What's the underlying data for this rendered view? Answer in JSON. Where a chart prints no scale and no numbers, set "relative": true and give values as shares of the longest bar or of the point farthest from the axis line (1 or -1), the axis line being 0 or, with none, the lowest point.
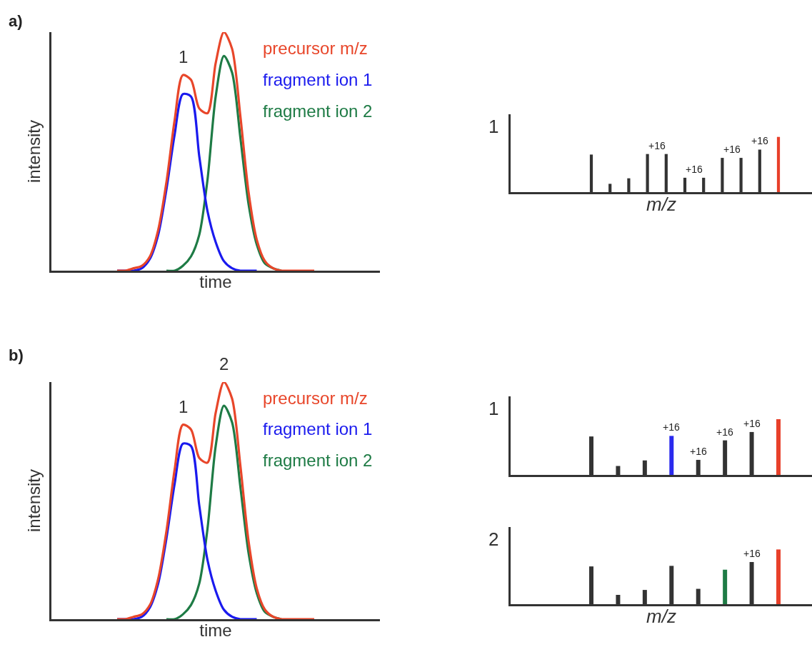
{
  "chart_data": [
    {
      "type": "line",
      "title": "a)",
      "xlabel": "time",
      "ylabel": "intensity",
      "relative": true,
      "tick_labels": false,
      "legend": "top right",
      "annotations": [
        "1"
      ],
      "categories": [
        null,
        null,
        null,
        null,
        null,
        null,
        null,
        null,
        null,
        null,
        null,
        null,
        null,
        null,
        null,
        null,
        null,
        null,
        null,
        null,
        null,
        null,
        null,
        null,
        null,
        null,
        null,
        null,
        null,
        null,
        null,
        null,
        null,
        null,
        null,
        null,
        null,
        null,
        null,
        null,
        null
      ],
      "series": [
        {
          "name": "precursor m/z",
          "color": "#e8462a",
          "values": [
            null,
            null,
            null,
            null,
            null,
            null,
            null,
            null,
            0,
            0,
            0.01,
            0.02,
            0.06,
            0.17,
            0.37,
            0.63,
            0.82,
            0.8,
            0.68,
            0.66,
            0.87,
            1,
            0.93,
            0.65,
            0.33,
            0.13,
            0.04,
            0.01,
            0,
            0,
            0,
            0,
            0,
            null,
            null,
            null,
            null,
            null,
            null,
            null,
            null
          ]
        },
        {
          "name": "fragment ion 1",
          "color": "#1a1aee",
          "values": [
            null,
            null,
            null,
            null,
            null,
            null,
            null,
            null,
            0,
            0,
            0,
            0.01,
            0.05,
            0.15,
            0.34,
            0.57,
            0.74,
            0.73,
            0.48,
            0.25,
            0.12,
            0.04,
            0.01,
            0,
            0,
            0,
            null,
            null,
            null,
            null,
            null,
            null,
            null,
            null,
            null,
            null,
            null,
            null,
            null,
            null,
            null
          ]
        },
        {
          "name": "fragment ion 2",
          "color": "#1e7b45",
          "values": [
            null,
            null,
            null,
            null,
            null,
            null,
            null,
            null,
            null,
            null,
            null,
            null,
            null,
            null,
            0,
            0,
            0.02,
            0.06,
            0.15,
            0.38,
            0.73,
            0.9,
            0.83,
            0.56,
            0.28,
            0.11,
            0.03,
            0.01,
            0,
            null,
            null,
            null,
            null,
            null,
            null,
            null,
            null,
            null,
            null,
            null,
            null
          ]
        }
      ]
    },
    {
      "type": "bar",
      "xlabel": "m/z",
      "ylabel": "1",
      "relative": true,
      "tick_labels": false,
      "categories": [
        null,
        null,
        null,
        null,
        null,
        null,
        null,
        null,
        null,
        null,
        null
      ],
      "values": [
        0.68,
        0.15,
        0.25,
        0.69,
        0.69,
        0.26,
        0.26,
        0.62,
        0.62,
        0.77,
        1
      ],
      "colors": [
        "#333333",
        "#333333",
        "#333333",
        "#333333",
        "#333333",
        "#333333",
        "#333333",
        "#333333",
        "#333333",
        "#333333",
        "#e8402a"
      ],
      "annotations": [
        "+16",
        "+16",
        "+16",
        "+16"
      ]
    },
    {
      "type": "line",
      "title": "b)",
      "xlabel": "time",
      "ylabel": "intensity",
      "relative": true,
      "tick_labels": false,
      "legend": "top right",
      "annotations": [
        "1",
        "2"
      ],
      "categories": [
        null,
        null,
        null,
        null,
        null,
        null,
        null,
        null,
        null,
        null,
        null,
        null,
        null,
        null,
        null,
        null,
        null,
        null,
        null,
        null,
        null,
        null,
        null,
        null,
        null,
        null,
        null,
        null,
        null,
        null,
        null,
        null,
        null,
        null,
        null,
        null,
        null,
        null,
        null,
        null,
        null
      ],
      "series": [
        {
          "name": "precursor m/z",
          "color": "#e8462a",
          "values": [
            null,
            null,
            null,
            null,
            null,
            null,
            null,
            null,
            0,
            0,
            0.01,
            0.02,
            0.06,
            0.17,
            0.37,
            0.63,
            0.82,
            0.8,
            0.68,
            0.66,
            0.87,
            1,
            0.93,
            0.65,
            0.33,
            0.13,
            0.04,
            0.01,
            0,
            0,
            0,
            0,
            0,
            null,
            null,
            null,
            null,
            null,
            null,
            null,
            null
          ]
        },
        {
          "name": "fragment ion 1",
          "color": "#1a1aee",
          "values": [
            null,
            null,
            null,
            null,
            null,
            null,
            null,
            null,
            0,
            0,
            0,
            0.01,
            0.05,
            0.15,
            0.34,
            0.57,
            0.74,
            0.73,
            0.48,
            0.25,
            0.12,
            0.04,
            0.01,
            0,
            0,
            0,
            null,
            null,
            null,
            null,
            null,
            null,
            null,
            null,
            null,
            null,
            null,
            null,
            null,
            null,
            null
          ]
        },
        {
          "name": "fragment ion 2",
          "color": "#1e7b45",
          "values": [
            null,
            null,
            null,
            null,
            null,
            null,
            null,
            null,
            null,
            null,
            null,
            null,
            null,
            null,
            0,
            0,
            0.02,
            0.06,
            0.15,
            0.38,
            0.73,
            0.9,
            0.83,
            0.56,
            0.28,
            0.11,
            0.03,
            0.01,
            0,
            null,
            null,
            null,
            null,
            null,
            null,
            null,
            null,
            null,
            null,
            null,
            null
          ]
        }
      ]
    },
    {
      "type": "bar",
      "ylabel": "1",
      "relative": true,
      "tick_labels": false,
      "categories": [
        null,
        null,
        null,
        null,
        null,
        null,
        null,
        null
      ],
      "values": [
        0.69,
        0.16,
        0.26,
        0.7,
        0.27,
        0.62,
        0.77,
        1
      ],
      "colors": [
        "#333333",
        "#333333",
        "#333333",
        "#2a2aee",
        "#333333",
        "#333333",
        "#333333",
        "#e8402a"
      ],
      "annotations": [
        "+16",
        "+16",
        "+16",
        "+16"
      ]
    },
    {
      "type": "bar",
      "xlabel": "m/z",
      "ylabel": "2",
      "relative": true,
      "tick_labels": false,
      "categories": [
        null,
        null,
        null,
        null,
        null,
        null,
        null,
        null
      ],
      "values": [
        0.69,
        0.17,
        0.26,
        0.7,
        0.28,
        0.63,
        0.77,
        1
      ],
      "colors": [
        "#333333",
        "#333333",
        "#333333",
        "#333333",
        "#333333",
        "#1e7b45",
        "#333333",
        "#e8402a"
      ],
      "annotations": [
        "+16"
      ]
    }
  ]
}
